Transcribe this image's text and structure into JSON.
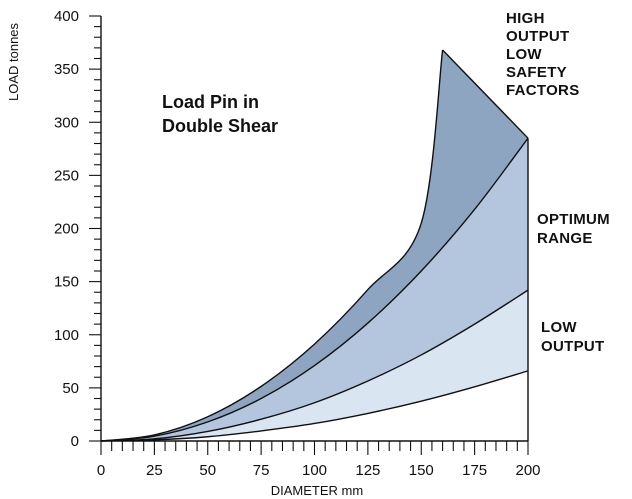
{
  "chart_data": {
    "type": "area",
    "title_lines": [
      "Load Pin in",
      "Double Shear"
    ],
    "xlabel": "DIAMETER mm",
    "ylabel": "LOAD tonnes",
    "xlim": [
      0,
      200
    ],
    "ylim": [
      0,
      400
    ],
    "x_ticks": [
      0,
      25,
      50,
      75,
      100,
      125,
      150,
      175,
      200
    ],
    "y_ticks": [
      0,
      50,
      100,
      150,
      200,
      250,
      300,
      350,
      400
    ],
    "grid": false,
    "curves": [
      {
        "name": "low",
        "x": [
          0,
          25,
          50,
          75,
          100,
          125,
          150,
          175,
          200
        ],
        "y": [
          0,
          1,
          4,
          9.5,
          16.5,
          26,
          37.5,
          51,
          66
        ]
      },
      {
        "name": "mid",
        "x": [
          0,
          25,
          50,
          75,
          100,
          125,
          150,
          175,
          200
        ],
        "y": [
          0,
          2,
          9,
          20.5,
          36,
          56.5,
          81,
          110,
          142
        ]
      },
      {
        "name": "upper",
        "x": [
          0,
          25,
          50,
          75,
          100,
          125,
          150,
          175,
          200
        ],
        "y": [
          0,
          4.5,
          18,
          40,
          71,
          111,
          160,
          218,
          285
        ]
      },
      {
        "name": "peak",
        "x": [
          0,
          25,
          50,
          75,
          100,
          125,
          150,
          160
        ],
        "y": [
          0,
          5.7,
          22.8,
          51.4,
          91.2,
          142.5,
          205,
          368
        ]
      }
    ],
    "peak_point": [
      160,
      368
    ],
    "right_edge_x": 200,
    "bands": [
      {
        "name": "high-output-band",
        "color": "#8ea5c2"
      },
      {
        "name": "optimum-band",
        "color": "#b3c6de"
      },
      {
        "name": "low-output-band",
        "color": "#dae5f2"
      }
    ],
    "annotations": [
      {
        "id": "high",
        "lines": [
          "HIGH",
          "OUTPUT",
          "LOW",
          "SAFETY",
          "FACTORS"
        ]
      },
      {
        "id": "optimum",
        "lines": [
          "OPTIMUM",
          "RANGE"
        ]
      },
      {
        "id": "low",
        "lines": [
          "LOW",
          "OUTPUT"
        ]
      }
    ]
  }
}
